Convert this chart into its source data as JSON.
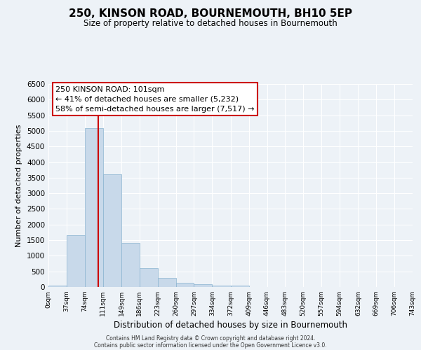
{
  "title": "250, KINSON ROAD, BOURNEMOUTH, BH10 5EP",
  "subtitle": "Size of property relative to detached houses in Bournemouth",
  "xlabel": "Distribution of detached houses by size in Bournemouth",
  "ylabel": "Number of detached properties",
  "bin_labels": [
    "0sqm",
    "37sqm",
    "74sqm",
    "111sqm",
    "149sqm",
    "186sqm",
    "223sqm",
    "260sqm",
    "297sqm",
    "334sqm",
    "372sqm",
    "409sqm",
    "446sqm",
    "483sqm",
    "520sqm",
    "557sqm",
    "594sqm",
    "632sqm",
    "669sqm",
    "706sqm",
    "743sqm"
  ],
  "bar_heights": [
    50,
    1650,
    5080,
    3600,
    1420,
    610,
    300,
    145,
    80,
    35,
    55,
    0,
    0,
    0,
    0,
    0,
    0,
    0,
    0,
    0
  ],
  "bar_color": "#c8d9ea",
  "bar_edge_color": "#8ab4d0",
  "bin_edges": [
    0,
    37,
    74,
    111,
    149,
    186,
    223,
    260,
    297,
    334,
    372,
    409,
    446,
    483,
    520,
    557,
    594,
    632,
    669,
    706,
    743
  ],
  "vline_x": 101,
  "vline_color": "#cc0000",
  "ylim": [
    0,
    6500
  ],
  "yticks": [
    0,
    500,
    1000,
    1500,
    2000,
    2500,
    3000,
    3500,
    4000,
    4500,
    5000,
    5500,
    6000,
    6500
  ],
  "annotation_title": "250 KINSON ROAD: 101sqm",
  "annotation_line1": "← 41% of detached houses are smaller (5,232)",
  "annotation_line2": "58% of semi-detached houses are larger (7,517) →",
  "annotation_box_color": "#ffffff",
  "annotation_box_edge": "#cc0000",
  "footer1": "Contains HM Land Registry data © Crown copyright and database right 2024.",
  "footer2": "Contains public sector information licensed under the Open Government Licence v3.0.",
  "bg_color": "#edf2f7",
  "grid_color": "#ffffff"
}
